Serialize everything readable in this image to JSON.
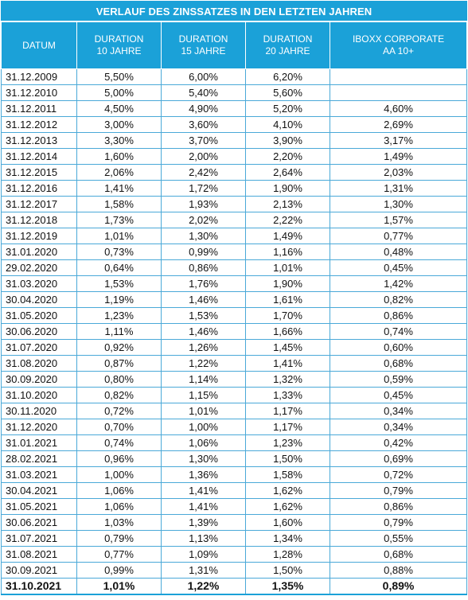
{
  "title": "VERLAUF DES ZINSSATZES IN DEN LETZTEN JAHREN",
  "headers": [
    [
      "DATUM"
    ],
    [
      "DURATION",
      "10 JAHRE"
    ],
    [
      "DURATION",
      "15 JAHRE"
    ],
    [
      "DURATION",
      "20 JAHRE"
    ],
    [
      "IBOXX CORPORATE",
      "AA 10+"
    ]
  ],
  "rows": [
    [
      "31.12.2009",
      "5,50%",
      "6,00%",
      "6,20%",
      ""
    ],
    [
      "31.12.2010",
      "5,00%",
      "5,40%",
      "5,60%",
      ""
    ],
    [
      "31.12.2011",
      "4,50%",
      "4,90%",
      "5,20%",
      "4,60%"
    ],
    [
      "31.12.2012",
      "3,00%",
      "3,60%",
      "4,10%",
      "2,69%"
    ],
    [
      "31.12.2013",
      "3,30%",
      "3,70%",
      "3,90%",
      "3,17%"
    ],
    [
      "31.12.2014",
      "1,60%",
      "2,00%",
      "2,20%",
      "1,49%"
    ],
    [
      "31.12.2015",
      "2,06%",
      "2,42%",
      "2,64%",
      "2,03%"
    ],
    [
      "31.12.2016",
      "1,41%",
      "1,72%",
      "1,90%",
      "1,31%"
    ],
    [
      "31.12.2017",
      "1,58%",
      "1,93%",
      "2,13%",
      "1,30%"
    ],
    [
      "31.12.2018",
      "1,73%",
      "2,02%",
      "2,22%",
      "1,57%"
    ],
    [
      "31.12.2019",
      "1,01%",
      "1,30%",
      "1,49%",
      "0,77%"
    ],
    [
      "31.01.2020",
      "0,73%",
      "0,99%",
      "1,16%",
      "0,48%"
    ],
    [
      "29.02.2020",
      "0,64%",
      "0,86%",
      "1,01%",
      "0,45%"
    ],
    [
      "31.03.2020",
      "1,53%",
      "1,76%",
      "1,90%",
      "1,42%"
    ],
    [
      "30.04.2020",
      "1,19%",
      "1,46%",
      "1,61%",
      "0,82%"
    ],
    [
      "31.05.2020",
      "1,23%",
      "1,53%",
      "1,70%",
      "0,86%"
    ],
    [
      "30.06.2020",
      "1,11%",
      "1,46%",
      "1,66%",
      "0,74%"
    ],
    [
      "31.07.2020",
      "0,92%",
      "1,26%",
      "1,45%",
      "0,60%"
    ],
    [
      "31.08.2020",
      "0,87%",
      "1,22%",
      "1,41%",
      "0,68%"
    ],
    [
      "30.09.2020",
      "0,80%",
      "1,14%",
      "1,32%",
      "0,59%"
    ],
    [
      "31.10.2020",
      "0,82%",
      "1,15%",
      "1,33%",
      "0,45%"
    ],
    [
      "30.11.2020",
      "0,72%",
      "1,01%",
      "1,17%",
      "0,34%"
    ],
    [
      "31.12.2020",
      "0,70%",
      "1,00%",
      "1,17%",
      "0,34%"
    ],
    [
      "31.01.2021",
      "0,74%",
      "1,06%",
      "1,23%",
      "0,42%"
    ],
    [
      "28.02.2021",
      "0,96%",
      "1,30%",
      "1,50%",
      "0,69%"
    ],
    [
      "31.03.2021",
      "1,00%",
      "1,36%",
      "1,58%",
      "0,72%"
    ],
    [
      "30.04.2021",
      "1,06%",
      "1,41%",
      "1,62%",
      "0,79%"
    ],
    [
      "31.05.2021",
      "1,06%",
      "1,41%",
      "1,62%",
      "0,86%"
    ],
    [
      "30.06.2021",
      "1,03%",
      "1,39%",
      "1,60%",
      "0,79%"
    ],
    [
      "31.07.2021",
      "0,79%",
      "1,13%",
      "1,34%",
      "0,55%"
    ],
    [
      "31.08.2021",
      "0,77%",
      "1,09%",
      "1,28%",
      "0,68%"
    ],
    [
      "30.09.2021",
      "0,99%",
      "1,31%",
      "1,50%",
      "0,88%"
    ],
    [
      "31.10.2021",
      "1,01%",
      "1,22%",
      "1,35%",
      "0,89%"
    ]
  ],
  "colors": {
    "header_bg": "#1ba1d8",
    "grid": "#4aa9d8",
    "header_text": "#ffffff"
  }
}
